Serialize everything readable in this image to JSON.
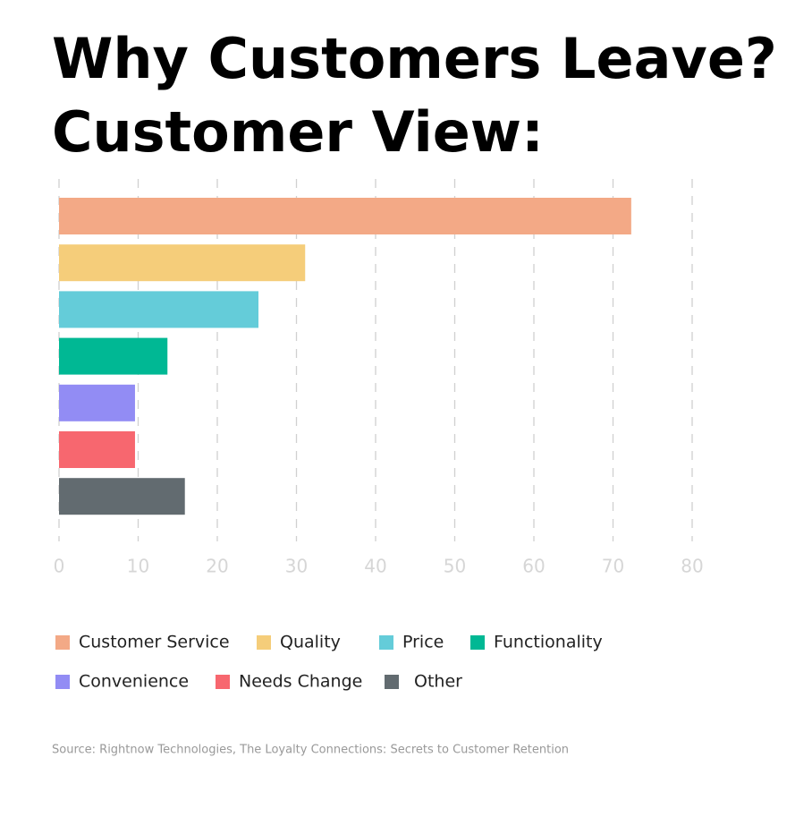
{
  "chart_data": {
    "type": "bar",
    "horizontal": true,
    "title": [
      "Why Customers Leave?",
      "Customer View:"
    ],
    "categories": [
      "Customer Service",
      "Quality",
      "Price",
      "Functionality",
      "Convenience",
      "Needs Change",
      "Other"
    ],
    "values": [
      72.3,
      31.1,
      25.2,
      13.7,
      9.6,
      9.6,
      15.9
    ],
    "colors": [
      "#f3a986",
      "#f5cd7a",
      "#64ccd9",
      "#00b894",
      "#928cf4",
      "#f7676f",
      "#626b70"
    ],
    "xlim": [
      0,
      80
    ],
    "xticks": [
      0,
      10,
      20,
      30,
      40,
      50,
      60,
      70,
      80
    ],
    "grid": true,
    "source": "Source: Rightnow Technologies, The Loyalty Connections: Secrets to Customer Retention"
  }
}
